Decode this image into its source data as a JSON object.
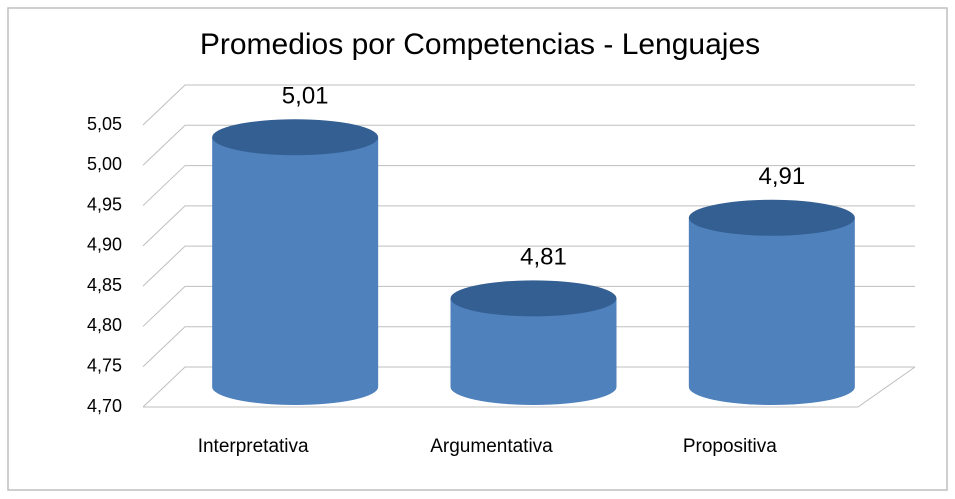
{
  "chart_data": {
    "type": "cylinder",
    "title": "Promedios por Competencias - Lenguajes",
    "categories": [
      "Interpretativa",
      "Argumentativa",
      "Propositiva"
    ],
    "values": [
      5.01,
      4.81,
      4.91
    ],
    "value_labels": [
      "5,01",
      "4,81",
      "4,91"
    ],
    "color": "#4f81bd",
    "top_color": "#345f92",
    "ylim": [
      4.7,
      5.05
    ],
    "yticks": [
      {
        "value": 4.7,
        "label": "4,70"
      },
      {
        "value": 4.75,
        "label": "4,75"
      },
      {
        "value": 4.8,
        "label": "4,80"
      },
      {
        "value": 4.85,
        "label": "4,85"
      },
      {
        "value": 4.9,
        "label": "4,90"
      },
      {
        "value": 4.95,
        "label": "4,95"
      },
      {
        "value": 5.0,
        "label": "5,00"
      },
      {
        "value": 5.05,
        "label": "5,05"
      }
    ],
    "grid": true
  }
}
